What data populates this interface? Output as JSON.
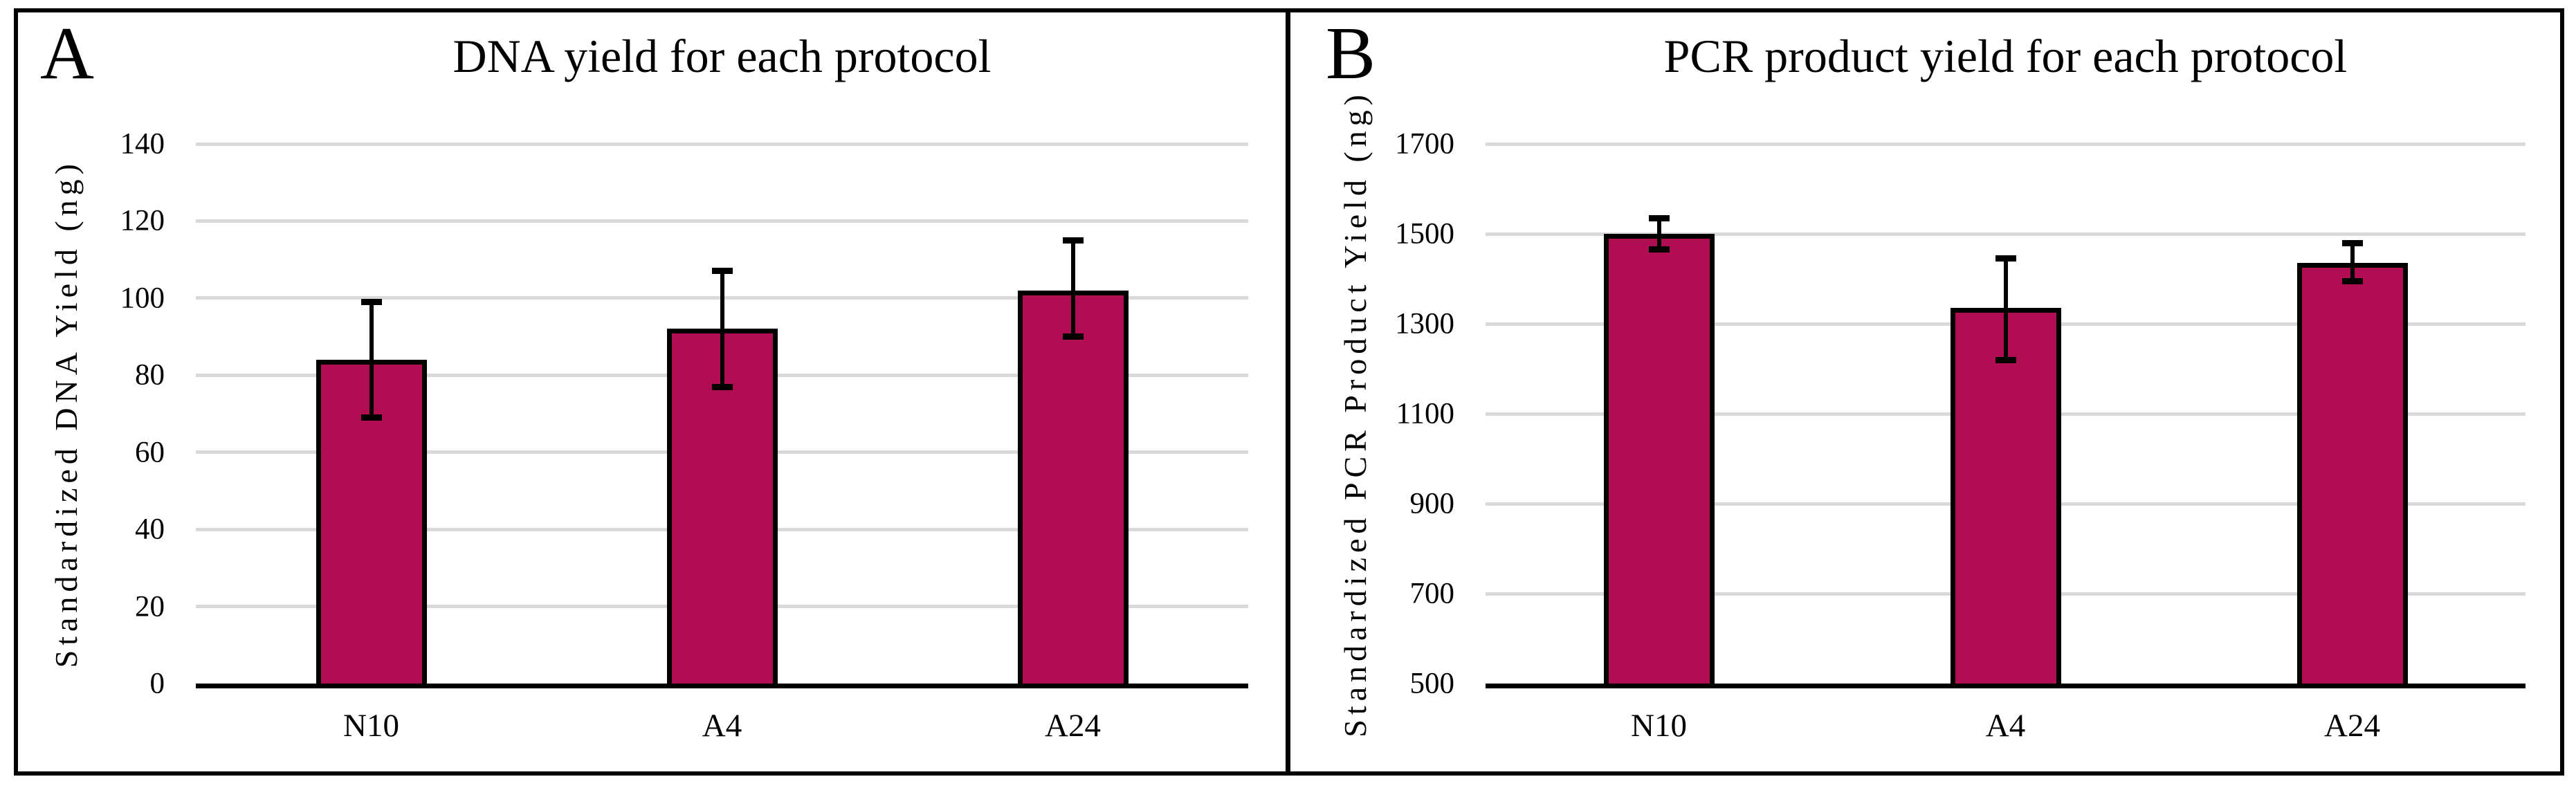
{
  "figure": {
    "background": "#FFFFFF",
    "border_color": "#000000",
    "gridline_color": "#D9D9D9",
    "axis_color": "#000000",
    "bar_fill": "#B10D52",
    "bar_border": "#000000"
  },
  "chart_data": [
    {
      "type": "bar",
      "panel_letter": "A",
      "title": "DNA yield for each protocol",
      "xlabel": "",
      "ylabel": "Standardized DNA Yield (ng)",
      "categories": [
        "N10",
        "A4",
        "A24"
      ],
      "values": [
        84,
        92,
        102
      ],
      "error_low": [
        69,
        77,
        90
      ],
      "error_high": [
        99,
        107,
        115
      ],
      "ylim": [
        0,
        140
      ],
      "ytick_step": 20,
      "yticks": [
        0,
        20,
        40,
        60,
        80,
        100,
        120,
        140
      ],
      "grid": "horizontal",
      "legend": "none"
    },
    {
      "type": "bar",
      "panel_letter": "B",
      "title": "PCR product yield for each protocol",
      "xlabel": "",
      "ylabel": "Standardized PCR Product Yield (ng)",
      "categories": [
        "N10",
        "A4",
        "A24"
      ],
      "values": [
        1500,
        1335,
        1435
      ],
      "error_low": [
        1465,
        1220,
        1395
      ],
      "error_high": [
        1535,
        1445,
        1480
      ],
      "ylim": [
        500,
        1700
      ],
      "ytick_step": 200,
      "yticks": [
        500,
        700,
        900,
        1100,
        1300,
        1500,
        1700
      ],
      "grid": "horizontal",
      "legend": "none"
    }
  ]
}
